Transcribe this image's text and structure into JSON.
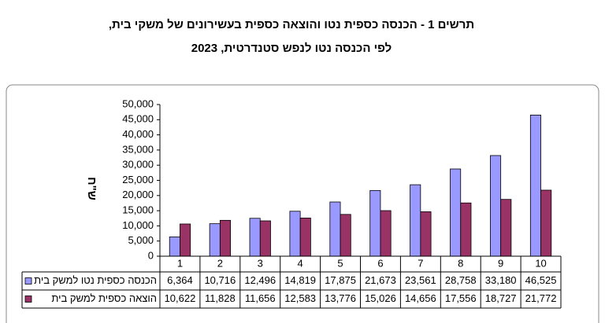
{
  "chart_data": {
    "type": "bar",
    "title": "תרשים 1 - הכנסה כספית נטו והוצאה כספית בעשירונים של משקי בית,",
    "subtitle": "לפי הכנסה נטו לנפש סטנדרטית, 2023",
    "y_label": "ש\"ח",
    "categories": [
      "1",
      "2",
      "3",
      "4",
      "5",
      "6",
      "7",
      "8",
      "9",
      "10"
    ],
    "series": [
      {
        "name": "הכנסה כספית נטו למשק בית",
        "color": "#9999ff",
        "values": [
          6364,
          10716,
          12496,
          14819,
          17875,
          21673,
          23561,
          28758,
          33180,
          46525
        ],
        "value_labels": [
          "6,364",
          "10,716",
          "12,496",
          "14,819",
          "17,875",
          "21,673",
          "23,561",
          "28,758",
          "33,180",
          "46,525"
        ]
      },
      {
        "name": "הוצאה כספית למשק בית",
        "color": "#993366",
        "values": [
          10622,
          11828,
          11656,
          12583,
          13776,
          15026,
          14656,
          17556,
          18727,
          21772
        ],
        "value_labels": [
          "10,622",
          "11,828",
          "11,656",
          "12,583",
          "13,776",
          "15,026",
          "14,656",
          "17,556",
          "18,727",
          "21,772"
        ]
      }
    ],
    "ylim": [
      0,
      50000
    ],
    "yticks": [
      0,
      {
        "value": 5000,
        "label": "5,000"
      },
      {
        "value": 10000,
        "label": "10,000"
      },
      {
        "value": 15000,
        "label": "15,000"
      },
      {
        "value": 20000,
        "label": "20,000"
      },
      {
        "value": 25000,
        "label": "25,000"
      },
      {
        "value": 30000,
        "label": "30,000"
      },
      {
        "value": 35000,
        "label": "35,000"
      },
      {
        "value": 40000,
        "label": "40,000"
      },
      {
        "value": 45000,
        "label": "45,000"
      },
      {
        "value": 50000,
        "label": "50,000"
      }
    ],
    "grid": false
  }
}
